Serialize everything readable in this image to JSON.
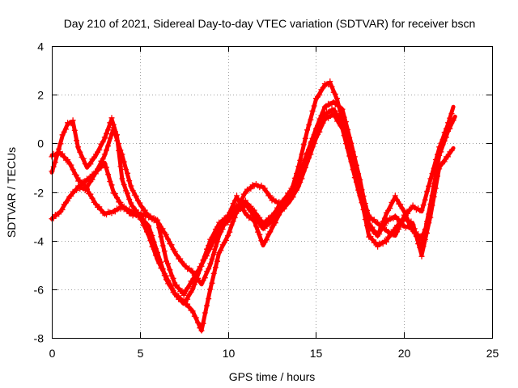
{
  "chart_data": {
    "type": "scatter",
    "title": "Day 210 of 2021, Sidereal Day-to-day VTEC variation (SDTVAR) for receiver bscn",
    "xlabel": "GPS time / hours",
    "ylabel": "SDTVAR / TECUs",
    "xlim": [
      0,
      25
    ],
    "ylim": [
      -8,
      4
    ],
    "x_ticks": [
      0,
      5,
      10,
      15,
      20,
      25
    ],
    "y_ticks": [
      -8,
      -6,
      -4,
      -2,
      0,
      2,
      4
    ],
    "x_tick_labels": [
      "0",
      "5",
      "10",
      "15",
      "20",
      "25"
    ],
    "y_tick_labels": [
      "-8",
      "-6",
      "-4",
      "-2",
      "0",
      "2",
      "4"
    ],
    "grid": true,
    "marker": "plus",
    "color": "#ff0000",
    "series": [
      {
        "x": [
          0.0,
          0.3,
          0.6,
          0.9,
          1.2,
          1.5,
          2.0,
          2.5,
          3.0,
          3.4,
          3.7,
          4.0,
          4.5,
          5.0,
          5.5,
          6.0,
          6.5,
          7.0,
          7.5,
          8.0,
          8.5,
          9.0,
          9.5,
          10.0,
          10.5,
          11.0,
          11.5,
          12.0,
          12.5,
          13.0,
          13.5,
          14.0,
          14.5,
          15.0,
          15.5,
          15.8,
          16.2,
          16.5,
          17.0,
          17.5,
          18.0,
          18.5,
          19.0,
          19.5,
          20.0,
          20.5,
          21.0,
          21.5,
          22.0,
          22.5,
          22.8
        ],
        "y": [
          -1.2,
          -0.5,
          0.3,
          0.8,
          0.9,
          -0.2,
          -1.0,
          -0.5,
          0.2,
          1.0,
          0.3,
          -1.5,
          -2.5,
          -3.0,
          -3.8,
          -4.8,
          -5.5,
          -6.2,
          -6.6,
          -6.0,
          -5.0,
          -4.0,
          -3.3,
          -3.0,
          -2.6,
          -2.4,
          -2.8,
          -3.3,
          -3.0,
          -2.5,
          -2.2,
          -1.0,
          0.5,
          1.8,
          2.4,
          2.5,
          1.8,
          1.0,
          -0.3,
          -1.8,
          -3.0,
          -3.3,
          -3.6,
          -3.8,
          -3.0,
          -2.6,
          -2.8,
          -1.5,
          -0.2,
          0.8,
          1.5
        ]
      },
      {
        "x": [
          0.0,
          0.5,
          1.0,
          1.5,
          2.0,
          2.5,
          3.0,
          3.5,
          4.0,
          4.5,
          5.0,
          5.5,
          6.0,
          6.5,
          7.0,
          7.5,
          8.0,
          8.5,
          9.0,
          9.5,
          10.0,
          10.5,
          11.0,
          11.5,
          12.0,
          12.5,
          13.0,
          13.5,
          14.0,
          14.5,
          15.0,
          15.5,
          16.0,
          16.5,
          17.0,
          17.5,
          18.0,
          18.5,
          19.0,
          19.5,
          20.0,
          20.5,
          21.0,
          21.5,
          22.0,
          22.5,
          22.9
        ],
        "y": [
          -3.1,
          -2.8,
          -2.2,
          -1.8,
          -1.9,
          -2.5,
          -2.9,
          -2.8,
          -2.6,
          -2.9,
          -3.0,
          -3.4,
          -4.5,
          -5.6,
          -6.2,
          -6.5,
          -6.9,
          -7.7,
          -6.0,
          -4.5,
          -3.8,
          -2.8,
          -2.5,
          -3.0,
          -3.5,
          -3.2,
          -2.6,
          -2.2,
          -1.4,
          -0.4,
          0.6,
          1.5,
          1.7,
          1.4,
          0.0,
          -1.5,
          -3.3,
          -3.8,
          -3.2,
          -3.0,
          -3.4,
          -3.5,
          -4.3,
          -2.5,
          -0.5,
          0.5,
          1.1
        ]
      },
      {
        "x": [
          0.0,
          0.5,
          1.0,
          1.5,
          2.0,
          2.5,
          3.0,
          3.5,
          4.0,
          4.5,
          5.0,
          5.5,
          6.0,
          6.5,
          7.0,
          7.5,
          8.0,
          8.5,
          9.0,
          9.5,
          10.0,
          10.5,
          11.0,
          11.5,
          12.0,
          12.5,
          13.0,
          13.5,
          14.0,
          14.5,
          15.0,
          15.5,
          16.0,
          16.5,
          17.0,
          17.5,
          18.0,
          18.5,
          19.0,
          19.5,
          20.0,
          20.5,
          21.0,
          21.5,
          22.0,
          22.5,
          22.8
        ],
        "y": [
          -0.5,
          -0.4,
          -0.8,
          -1.5,
          -1.8,
          -1.2,
          -0.8,
          -2.0,
          -2.6,
          -2.8,
          -2.9,
          -3.0,
          -3.2,
          -4.8,
          -5.8,
          -6.2,
          -5.6,
          -5.0,
          -4.3,
          -3.5,
          -3.2,
          -2.7,
          -2.0,
          -1.7,
          -1.8,
          -2.3,
          -2.5,
          -2.0,
          -1.5,
          -0.5,
          0.4,
          1.2,
          1.4,
          0.8,
          -0.5,
          -2.0,
          -3.8,
          -4.2,
          -4.0,
          -3.5,
          -3.1,
          -3.3,
          -4.6,
          -3.0,
          -1.0,
          -0.5,
          -0.2
        ]
      },
      {
        "x": [
          1.5,
          2.0,
          2.5,
          3.0,
          3.5,
          4.0,
          4.5,
          5.0,
          5.5,
          6.0,
          6.5,
          7.0,
          7.5,
          8.0,
          8.5,
          9.0,
          9.5,
          10.0,
          10.5,
          11.0,
          11.5,
          12.0,
          12.5,
          13.0,
          13.5,
          14.0,
          14.5,
          15.0,
          15.5,
          16.0,
          16.5,
          17.0,
          17.5,
          18.0,
          18.5,
          19.0,
          19.5,
          20.0,
          20.5,
          21.0,
          21.5
        ],
        "y": [
          -1.8,
          -1.5,
          -1.2,
          -0.5,
          0.6,
          -0.5,
          -1.8,
          -2.5,
          -3.0,
          -3.2,
          -3.8,
          -4.5,
          -5.0,
          -5.3,
          -5.8,
          -5.0,
          -3.8,
          -3.0,
          -2.2,
          -2.9,
          -3.2,
          -4.2,
          -3.5,
          -2.8,
          -2.4,
          -1.8,
          -0.8,
          0.2,
          1.0,
          1.2,
          0.6,
          -0.8,
          -2.2,
          -3.4,
          -3.8,
          -2.9,
          -2.2,
          -2.8,
          -3.6,
          -3.9,
          -3.0
        ]
      }
    ]
  }
}
